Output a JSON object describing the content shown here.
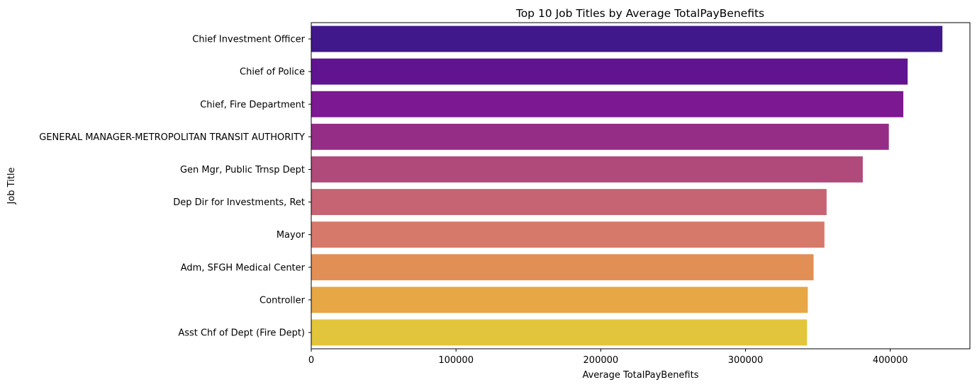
{
  "chart_data": {
    "type": "bar",
    "orientation": "horizontal",
    "title": "Top 10 Job Titles by Average TotalPayBenefits",
    "xlabel": "Average TotalPayBenefits",
    "ylabel": "Job Title",
    "xlim": [
      0,
      455000
    ],
    "xticks": [
      0,
      100000,
      200000,
      300000,
      400000
    ],
    "xtick_labels": [
      "0",
      "100000",
      "200000",
      "300000",
      "400000"
    ],
    "grid": false,
    "categories": [
      "Chief Investment Officer",
      "Chief of Police",
      "Chief, Fire Department",
      "GENERAL MANAGER-METROPOLITAN TRANSIT AUTHORITY",
      "Gen Mgr, Public Trnsp Dept",
      "Dep Dir for Investments, Ret",
      "Mayor",
      "Adm, SFGH Medical Center",
      "Controller",
      "Asst Chf of Dept (Fire Dept)"
    ],
    "values": [
      436000,
      412000,
      409000,
      399000,
      381000,
      356000,
      354500,
      347000,
      343000,
      342500
    ],
    "colors": [
      "#41188c",
      "#60148f",
      "#7c1891",
      "#952d87",
      "#b04a7b",
      "#c66473",
      "#d6796a",
      "#e18f55",
      "#e6a744",
      "#e3c53b"
    ]
  }
}
